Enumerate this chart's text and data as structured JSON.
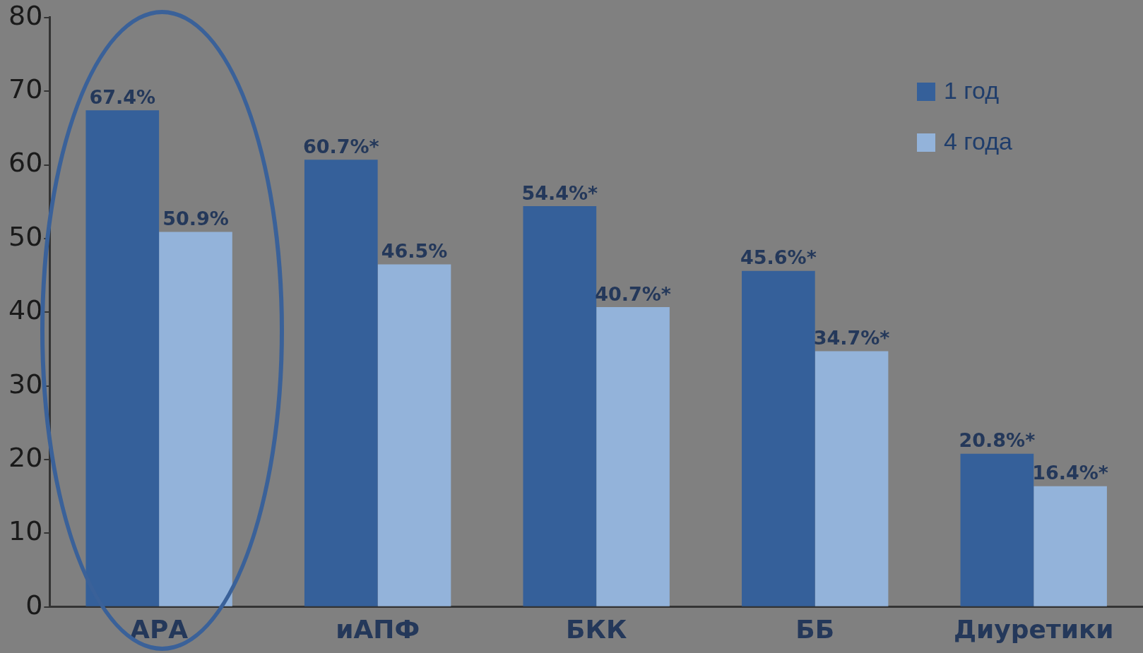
{
  "chart_data": {
    "type": "bar",
    "categories": [
      "АРА",
      "иАПФ",
      "БКК",
      "ББ",
      "Диуретики"
    ],
    "series": [
      {
        "name": "1 год",
        "color": "#35609a",
        "values": [
          67.4,
          60.7,
          54.4,
          45.6,
          20.8
        ],
        "value_labels": [
          "67.4%",
          "60.7%*",
          "54.4%*",
          "45.6%*",
          "20.8%*"
        ]
      },
      {
        "name": "4 года",
        "color": "#93b3da",
        "values": [
          50.9,
          46.5,
          40.7,
          34.7,
          16.4
        ],
        "value_labels": [
          "50.9%",
          "46.5%",
          "40.7%*",
          "34.7%*",
          "16.4%*"
        ]
      }
    ],
    "ylim": [
      0,
      80
    ],
    "yticks": [
      0,
      10,
      20,
      30,
      40,
      50,
      60,
      70,
      80
    ],
    "grid": false,
    "legend": "top right"
  }
}
